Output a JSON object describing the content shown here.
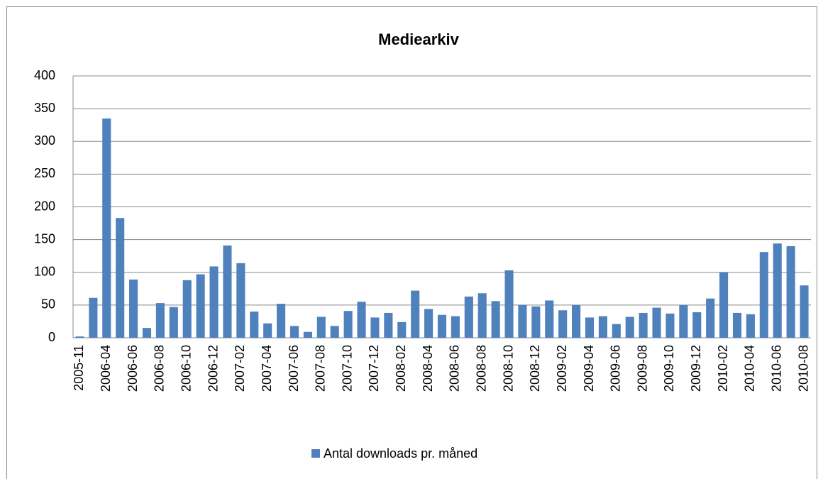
{
  "chart_data": {
    "type": "bar",
    "title": "Mediearkiv",
    "categories": [
      "2005-11",
      null,
      "2006-04",
      null,
      "2006-06",
      null,
      "2006-08",
      null,
      "2006-10",
      null,
      "2006-12",
      null,
      "2007-02",
      null,
      "2007-04",
      null,
      "2007-06",
      null,
      "2007-08",
      null,
      "2007-10",
      null,
      "2007-12",
      null,
      "2008-02",
      null,
      "2008-04",
      null,
      "2008-06",
      null,
      "2008-08",
      null,
      "2008-10",
      null,
      "2008-12",
      null,
      "2009-02",
      null,
      "2009-04",
      null,
      "2009-06",
      null,
      "2009-08",
      null,
      "2009-10",
      null,
      "2009-12",
      null,
      "2010-02",
      null,
      "2010-04",
      null,
      "2010-06",
      null,
      "2010-08"
    ],
    "series": [
      {
        "name": "Antal downloads pr. måned",
        "color": "#4f81bd",
        "values": [
          2,
          61,
          335,
          183,
          89,
          15,
          53,
          47,
          88,
          97,
          109,
          141,
          114,
          40,
          22,
          52,
          18,
          9,
          32,
          18,
          41,
          55,
          31,
          38,
          24,
          72,
          44,
          35,
          33,
          63,
          68,
          56,
          103,
          50,
          48,
          57,
          42,
          50,
          31,
          33,
          21,
          32,
          38,
          46,
          37,
          50,
          39,
          60,
          100,
          38,
          36,
          131,
          144,
          140,
          80
        ]
      }
    ],
    "ylim": [
      0,
      400
    ],
    "yticks": [
      0,
      50,
      100,
      150,
      200,
      250,
      300,
      350,
      400
    ],
    "grid": true,
    "legend": "bottom"
  }
}
